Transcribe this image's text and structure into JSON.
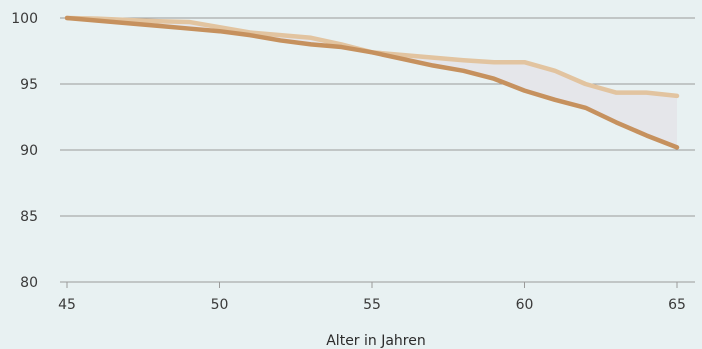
{
  "chart_data": {
    "type": "line",
    "title": "",
    "xlabel": "Alter in Jahren",
    "ylabel": "",
    "xlim": [
      45,
      65
    ],
    "ylim": [
      80,
      100
    ],
    "x_ticks": [
      45,
      50,
      55,
      60,
      65
    ],
    "y_ticks": [
      80,
      85,
      90,
      95,
      100
    ],
    "grid": true,
    "legend": "none",
    "colors": {
      "background": "#e8f1f2",
      "grid": "#9a9a9a",
      "upper_series": "#e2c4a0",
      "lower_series": "#c6915e",
      "gap_fill": "#e5e6ea"
    },
    "shade_between_series": true,
    "x": [
      45,
      46,
      47,
      48,
      49,
      50,
      51,
      52,
      53,
      54,
      55,
      56,
      57,
      58,
      59,
      60,
      61,
      62,
      63,
      64,
      65
    ],
    "series": [
      {
        "values": [
          100.0,
          99.95,
          99.85,
          99.75,
          99.7,
          99.3,
          98.9,
          98.7,
          98.5,
          98.0,
          97.4,
          97.2,
          97.0,
          96.8,
          96.65,
          96.65,
          96.0,
          95.0,
          94.35,
          94.35,
          94.1
        ]
      },
      {
        "values": [
          100.0,
          99.8,
          99.6,
          99.4,
          99.2,
          99.0,
          98.7,
          98.3,
          98.0,
          97.8,
          97.4,
          96.9,
          96.4,
          96.0,
          95.4,
          94.5,
          93.8,
          93.2,
          92.1,
          91.1,
          90.2
        ]
      }
    ]
  }
}
